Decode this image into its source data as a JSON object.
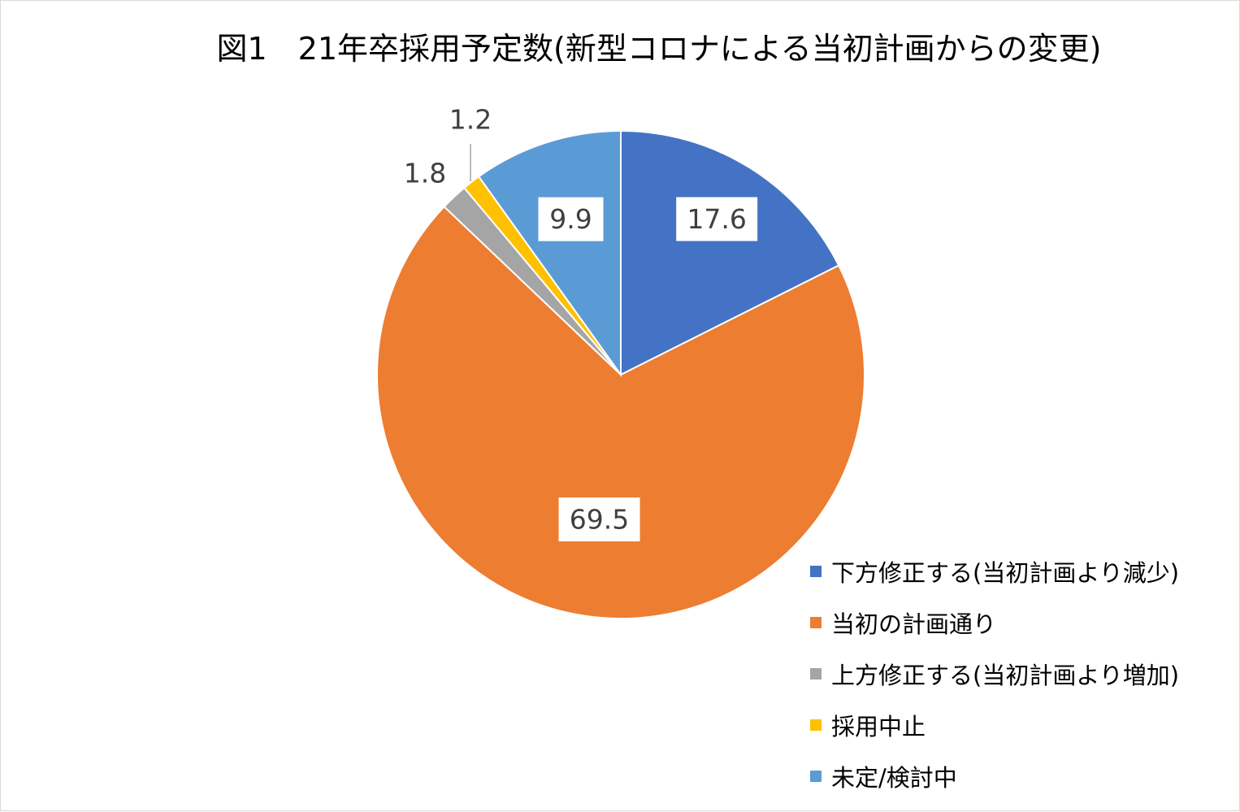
{
  "chart_data": {
    "type": "pie",
    "title": "図1　21年卒採用予定数(新型コロナによる当初計画からの変更)",
    "legend_position": "bottom-right",
    "categories": [
      "下方修正する(当初計画より減少)",
      "当初の計画通り",
      "上方修正する(当初計画より増加)",
      "採用中止",
      "未定/検討中"
    ],
    "values": [
      17.6,
      69.5,
      1.8,
      1.2,
      9.9
    ],
    "value_labels": [
      "17.6",
      "69.5",
      "1.8",
      "1.2",
      "9.9"
    ],
    "colors": [
      "#4472C4",
      "#ED7D31",
      "#A5A5A5",
      "#FFC000",
      "#5B9BD5"
    ]
  }
}
